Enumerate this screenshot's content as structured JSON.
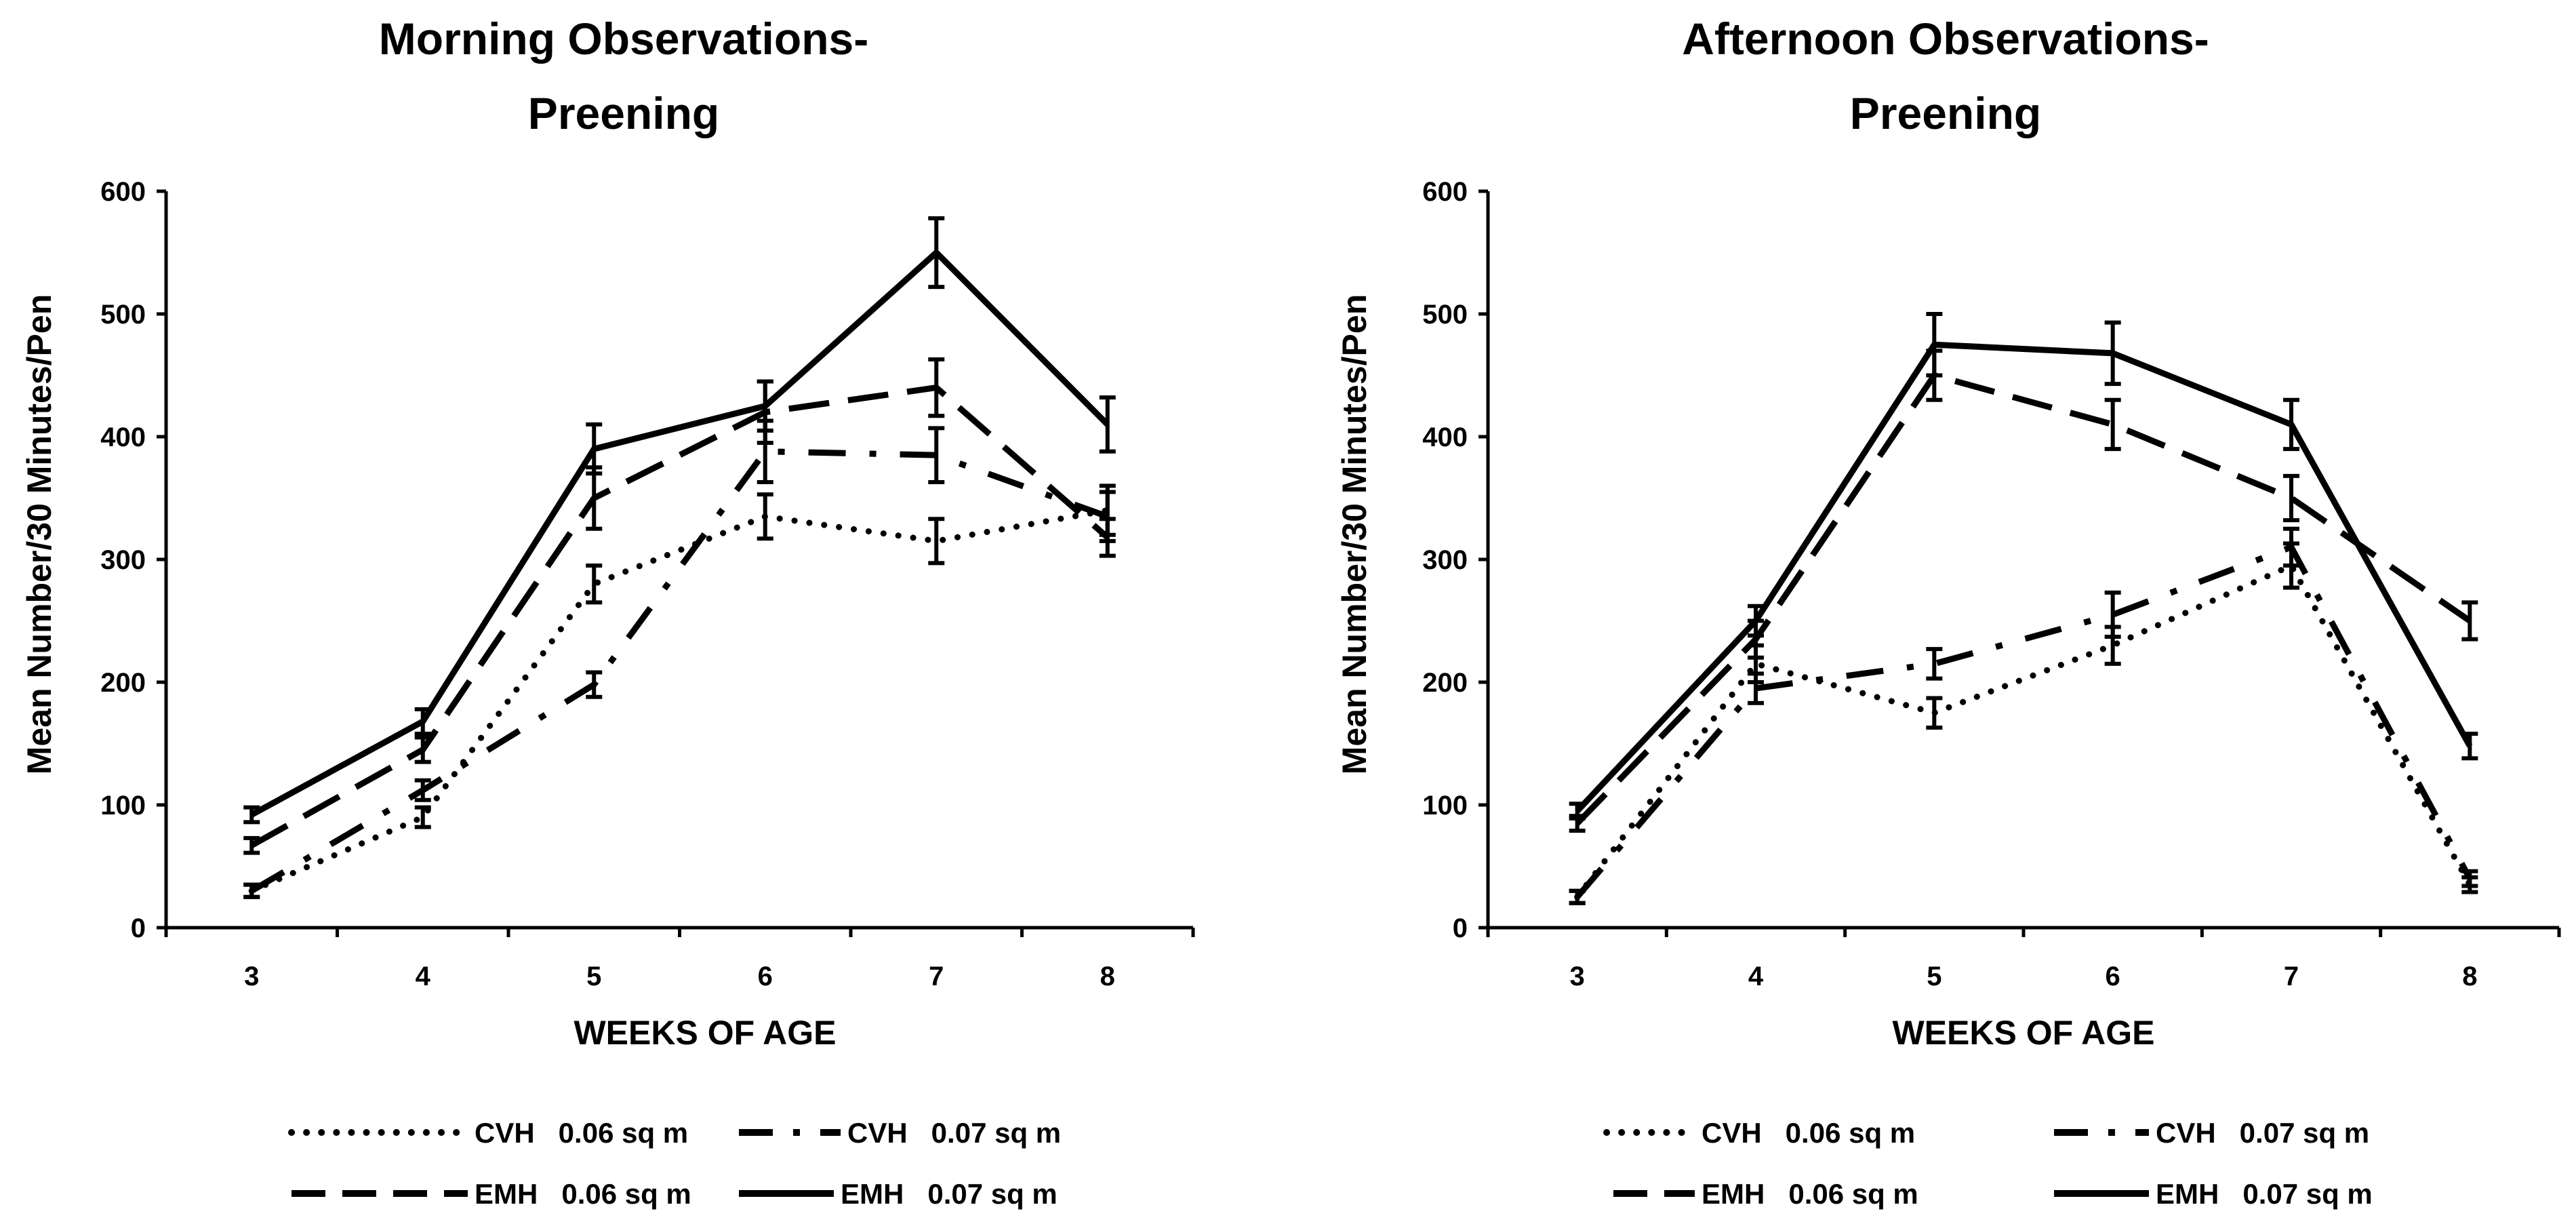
{
  "chart_data": [
    {
      "type": "line",
      "title_lines": [
        "Morning Observations-",
        "Preening"
      ],
      "xlabel": "WEEKS OF AGE",
      "ylabel": "Mean Number/30 Minutes/Pen",
      "ylim": [
        0,
        600
      ],
      "yticks": [
        "0",
        "100",
        "200",
        "300",
        "400",
        "500",
        "600"
      ],
      "categories": [
        "3",
        "4",
        "5",
        "6",
        "7",
        "8"
      ],
      "series": [
        {
          "name": "CVH   0.06 sq m",
          "style": "dotted",
          "values": [
            30,
            90,
            280,
            335,
            315,
            340
          ],
          "errors": [
            5,
            8,
            15,
            18,
            18,
            20
          ]
        },
        {
          "name": "CVH   0.07 sq m",
          "style": "dashdot",
          "values": [
            30,
            112,
            198,
            388,
            385,
            335
          ],
          "errors": [
            5,
            8,
            10,
            25,
            22,
            20
          ]
        },
        {
          "name": "EMH   0.06 sq m",
          "style": "dashed",
          "values": [
            67,
            145,
            350,
            420,
            440,
            318
          ],
          "errors": [
            6,
            10,
            25,
            25,
            23,
            15
          ]
        },
        {
          "name": "EMH   0.07 sq m",
          "style": "solid",
          "values": [
            92,
            168,
            390,
            425,
            550,
            410
          ],
          "errors": [
            6,
            10,
            20,
            20,
            28,
            22
          ]
        }
      ]
    },
    {
      "type": "line",
      "title_lines": [
        "Afternoon Observations-",
        "Preening"
      ],
      "xlabel": "WEEKS OF AGE",
      "ylabel": "Mean Number/30 Minutes/Pen",
      "ylim": [
        0,
        600
      ],
      "yticks": [
        "0",
        "100",
        "200",
        "300",
        "400",
        "500",
        "600"
      ],
      "categories": [
        "3",
        "4",
        "5",
        "6",
        "7",
        "8"
      ],
      "series": [
        {
          "name": "CVH   0.06 sq m",
          "style": "dotted",
          "values": [
            25,
            215,
            175,
            230,
            295,
            35
          ],
          "errors": [
            5,
            15,
            12,
            15,
            18,
            6
          ]
        },
        {
          "name": "CVH   0.07 sq m",
          "style": "dashdot",
          "values": [
            25,
            195,
            215,
            255,
            310,
            40
          ],
          "errors": [
            5,
            12,
            12,
            18,
            15,
            6
          ]
        },
        {
          "name": "EMH   0.06 sq m",
          "style": "dashed",
          "values": [
            85,
            235,
            450,
            410,
            350,
            250
          ],
          "errors": [
            6,
            15,
            20,
            20,
            18,
            15
          ]
        },
        {
          "name": "EMH   0.07 sq m",
          "style": "solid",
          "values": [
            95,
            250,
            475,
            468,
            410,
            148
          ],
          "errors": [
            6,
            12,
            25,
            25,
            20,
            10
          ]
        }
      ]
    }
  ]
}
